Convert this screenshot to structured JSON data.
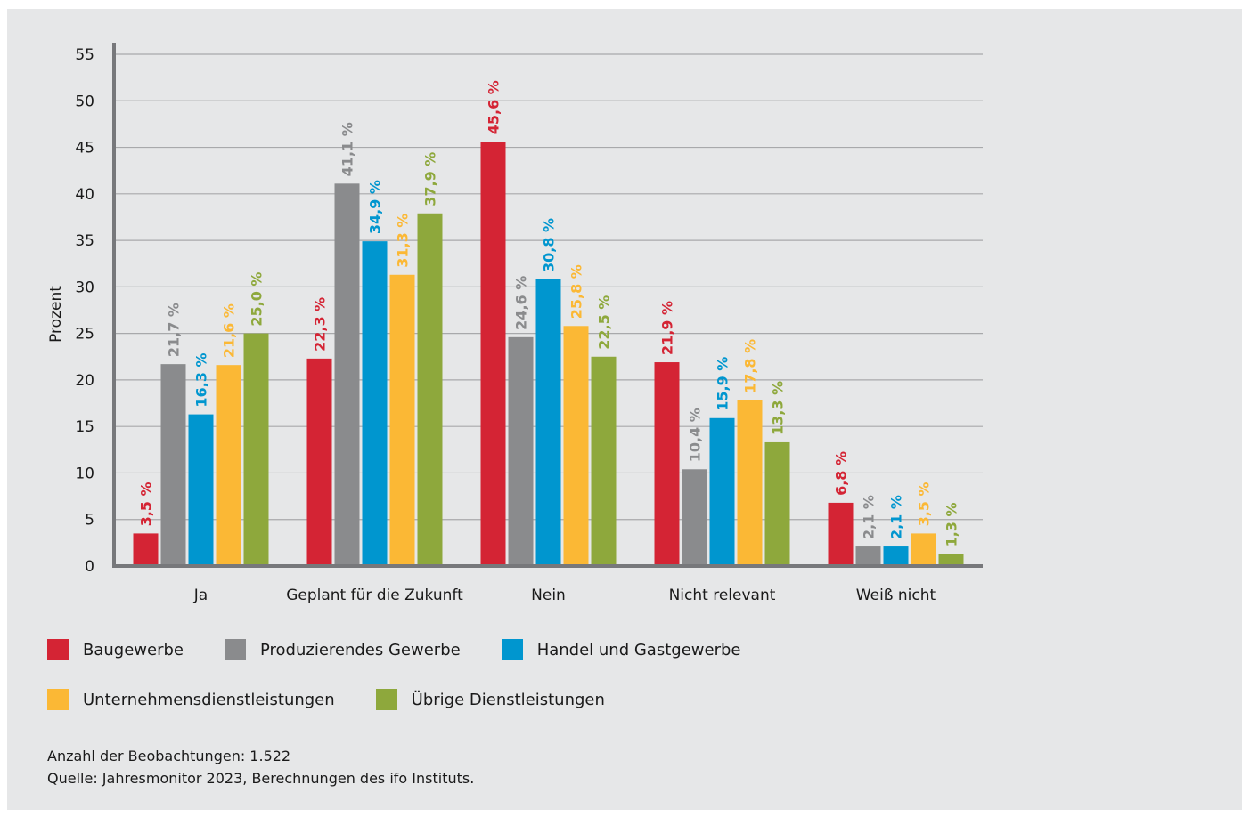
{
  "chart_data": {
    "type": "bar",
    "ylabel": "Prozent",
    "ylim": [
      0,
      55
    ],
    "yticks": [
      0,
      5,
      10,
      15,
      20,
      25,
      30,
      35,
      40,
      45,
      50,
      55
    ],
    "grid": true,
    "categories": [
      "Ja",
      "Geplant für die Zukunft",
      "Nein",
      "Nicht relevant",
      "Weiß nicht"
    ],
    "series": [
      {
        "name": "Baugewerbe",
        "color": "#d42434",
        "values": [
          3.5,
          22.3,
          45.6,
          21.9,
          6.8
        ],
        "labels": [
          "3,5 %",
          "22,3 %",
          "45,6 %",
          "21,9 %",
          "6,8 %"
        ]
      },
      {
        "name": "Produzierendes Gewerbe",
        "color": "#8a8b8d",
        "values": [
          21.7,
          41.1,
          24.6,
          10.4,
          2.1
        ],
        "labels": [
          "21,7 %",
          "41,1 %",
          "24,6 %",
          "10,4 %",
          "2,1 %"
        ]
      },
      {
        "name": "Handel und Gastgewerbe",
        "color": "#0096cf",
        "values": [
          16.3,
          34.9,
          30.8,
          15.9,
          2.1
        ],
        "labels": [
          "16,3 %",
          "34,9 %",
          "30,8 %",
          "15,9 %",
          "2,1 %"
        ]
      },
      {
        "name": "Unternehmensdienstleistungen",
        "color": "#fbb835",
        "values": [
          21.6,
          31.3,
          25.8,
          17.8,
          3.5
        ],
        "labels": [
          "21,6 %",
          "31,3 %",
          "25,8 %",
          "17,8 %",
          "3,5 %"
        ]
      },
      {
        "name": "Übrige Dienstleistungen",
        "color": "#8ea83c",
        "values": [
          25.0,
          37.9,
          22.5,
          13.3,
          1.3
        ],
        "labels": [
          "25,0 %",
          "37,9 %",
          "22,5 %",
          "13,3 %",
          "1,3 %"
        ]
      }
    ],
    "legend_position": "bottom"
  },
  "footnotes": {
    "observations": "Anzahl der Beobachtungen: 1.522",
    "source": "Quelle: Jahresmonitor 2023, Berechnungen des ifo Instituts."
  }
}
